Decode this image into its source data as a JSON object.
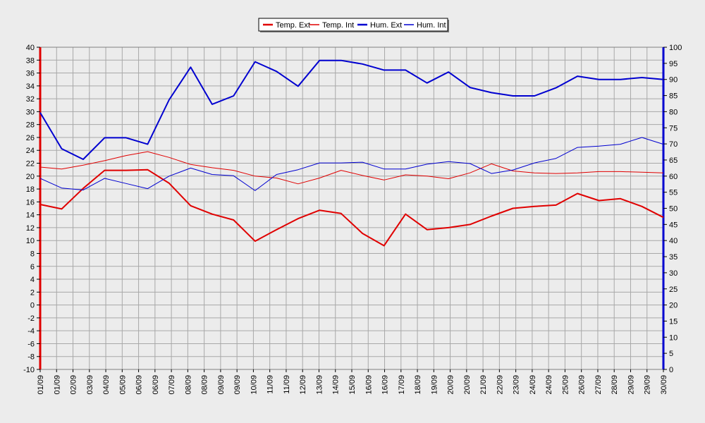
{
  "chart_data": {
    "type": "line",
    "title": "",
    "xlabel": "",
    "ylabel_left": "",
    "ylabel_right": "",
    "legend_position": "top-center",
    "grid": true,
    "categories": [
      "01/09",
      "01/09",
      "02/09",
      "03/09",
      "04/09",
      "05/09",
      "06/09",
      "06/09",
      "07/09",
      "08/09",
      "08/09",
      "09/09",
      "09/09",
      "10/09",
      "11/09",
      "11/09",
      "12/09",
      "13/09",
      "14/09",
      "15/09",
      "16/09",
      "16/09",
      "17/09",
      "18/09",
      "19/09",
      "20/09",
      "20/09",
      "21/09",
      "22/09",
      "23/09",
      "24/09",
      "24/09",
      "25/09",
      "26/09",
      "27/09",
      "28/09",
      "29/09",
      "29/09",
      "30/09"
    ],
    "y_left": {
      "min": -10,
      "max": 40,
      "step": 2,
      "ticks": [
        "40",
        "38",
        "36",
        "34",
        "32",
        "30",
        "28",
        "26",
        "24",
        "22",
        "20",
        "18",
        "16",
        "14",
        "12",
        "10",
        "8",
        "6",
        "4",
        "2",
        "0",
        "-2",
        "-4",
        "-6",
        "-8",
        "-10"
      ]
    },
    "y_right": {
      "min": 0,
      "max": 100,
      "step": 5,
      "ticks": [
        "100",
        "95",
        "90",
        "85",
        "80",
        "75",
        "70",
        "65",
        "60",
        "55",
        "50",
        "45",
        "40",
        "35",
        "30",
        "25",
        "20",
        "15",
        "10",
        "5",
        "0"
      ]
    },
    "series": [
      {
        "name": "Temp. Ext",
        "axis": "left",
        "color": "#e00000",
        "width": 2,
        "x": [
          0,
          1,
          2,
          3,
          4,
          5,
          6,
          7,
          8,
          9,
          10,
          11,
          12,
          13,
          14,
          15,
          16,
          17,
          18,
          19,
          20,
          21,
          22,
          23,
          24,
          25,
          26,
          27,
          28,
          29
        ],
        "values": [
          15.6,
          14.9,
          18.1,
          20.9,
          20.9,
          21.0,
          18.9,
          15.4,
          14.1,
          13.2,
          9.9,
          11.7,
          13.4,
          14.7,
          14.2,
          11.1,
          9.2,
          14.1,
          11.7,
          12.0,
          12.5,
          13.8,
          15.0,
          15.3,
          15.5,
          17.3,
          16.2,
          16.5,
          15.3,
          13.6
        ]
      },
      {
        "name": "Temp. Int",
        "axis": "left",
        "color": "#e00000",
        "width": 1,
        "x": [
          0,
          1,
          2,
          3,
          4,
          5,
          6,
          7,
          8,
          9,
          10,
          11,
          12,
          13,
          14,
          15,
          16,
          17,
          18,
          19,
          20,
          21,
          22,
          23,
          24,
          25,
          26,
          27,
          28,
          29
        ],
        "values": [
          21.4,
          21.1,
          21.7,
          22.4,
          23.2,
          23.8,
          22.9,
          21.8,
          21.3,
          20.9,
          20.0,
          19.7,
          18.8,
          19.7,
          20.9,
          20.1,
          19.4,
          20.2,
          20.0,
          19.6,
          20.5,
          21.9,
          20.8,
          20.5,
          20.4,
          20.5,
          20.7,
          20.7,
          20.6,
          20.5
        ]
      },
      {
        "name": "Hum. Ext",
        "axis": "right",
        "color": "#0000d0",
        "width": 2,
        "x": [
          0,
          1,
          2,
          3,
          4,
          5,
          6,
          7,
          8,
          9,
          10,
          11,
          12,
          13,
          14,
          15,
          16,
          17,
          18,
          19,
          20,
          21,
          22,
          23,
          24,
          25,
          26,
          27,
          28,
          29
        ],
        "values": [
          79.7,
          68.5,
          65.2,
          71.9,
          71.9,
          69.9,
          83.7,
          93.8,
          82.3,
          84.9,
          95.5,
          92.5,
          87.9,
          95.9,
          95.9,
          94.8,
          92.9,
          92.9,
          88.9,
          92.3,
          87.5,
          85.9,
          84.9,
          84.9,
          87.4,
          91.0,
          90.0,
          90.0,
          90.6,
          90.0
        ]
      },
      {
        "name": "Hum. Int",
        "axis": "right",
        "color": "#0000d0",
        "width": 1,
        "x": [
          0,
          1,
          2,
          3,
          4,
          5,
          6,
          7,
          8,
          9,
          10,
          11,
          12,
          13,
          14,
          15,
          16,
          17,
          18,
          19,
          20,
          21,
          22,
          23,
          24,
          25,
          26,
          27,
          28,
          29
        ],
        "values": [
          59.3,
          56.3,
          55.7,
          59.3,
          57.7,
          56.1,
          60.0,
          62.5,
          60.5,
          60.1,
          55.5,
          60.5,
          62.0,
          64.1,
          64.1,
          64.3,
          62.2,
          62.2,
          63.7,
          64.5,
          63.9,
          60.8,
          61.9,
          64.1,
          65.5,
          68.9,
          69.3,
          69.9,
          72.0,
          69.9
        ]
      }
    ]
  }
}
